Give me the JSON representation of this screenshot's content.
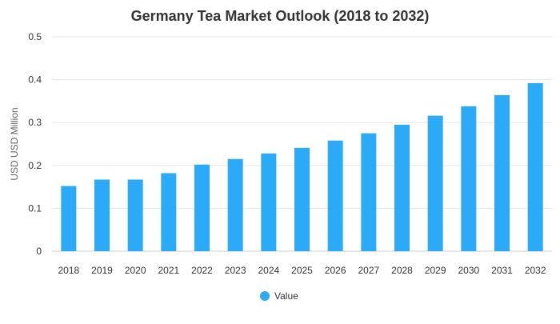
{
  "chart_data": {
    "type": "bar",
    "title": "Germany Tea Market Outlook (2018 to 2032)",
    "xlabel": "",
    "ylabel": "USD USD Million",
    "ylim": [
      0,
      0.5
    ],
    "yticks": [
      "0",
      "0.1",
      "0.2",
      "0.3",
      "0.4",
      "0.5"
    ],
    "ytick_values": [
      0,
      0.1,
      0.2,
      0.3,
      0.4,
      0.5
    ],
    "grid": true,
    "legend_position": "bottom",
    "categories": [
      "2018",
      "2019",
      "2020",
      "2021",
      "2022",
      "2023",
      "2024",
      "2025",
      "2026",
      "2027",
      "2028",
      "2029",
      "2030",
      "2031",
      "2032"
    ],
    "series": [
      {
        "name": "Value",
        "color": "#2BAAF7",
        "values": [
          0.152,
          0.167,
          0.167,
          0.182,
          0.202,
          0.215,
          0.228,
          0.241,
          0.258,
          0.275,
          0.295,
          0.316,
          0.338,
          0.364,
          0.392
        ]
      }
    ]
  }
}
